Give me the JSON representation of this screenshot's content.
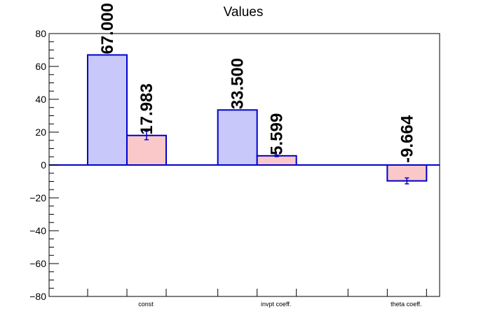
{
  "chart_data": {
    "type": "bar",
    "title": "Values",
    "categories": [
      "const",
      "invpt coeff.",
      "theta coeff."
    ],
    "ylim": [
      -80,
      80
    ],
    "yticks": [
      -80,
      -60,
      -40,
      -20,
      0,
      20,
      40,
      60,
      80
    ],
    "ytick_labels": [
      "−80",
      "−60",
      "−40",
      "−20",
      "0",
      "20",
      "40",
      "60",
      "80"
    ],
    "grid": false,
    "series": [
      {
        "color": "#c8c8fa",
        "edge": "#0000cc",
        "values": [
          67.0,
          33.5,
          null
        ],
        "labels": [
          "67.000",
          "33.500",
          null
        ],
        "errors": [
          0,
          0,
          null
        ]
      },
      {
        "color": "#fac8c8",
        "edge": "#0000cc",
        "values": [
          17.983,
          5.599,
          -9.664
        ],
        "labels": [
          "17.983",
          "5.599",
          "-9.664"
        ],
        "errors": [
          2.6,
          0.5,
          1.8
        ]
      }
    ]
  }
}
